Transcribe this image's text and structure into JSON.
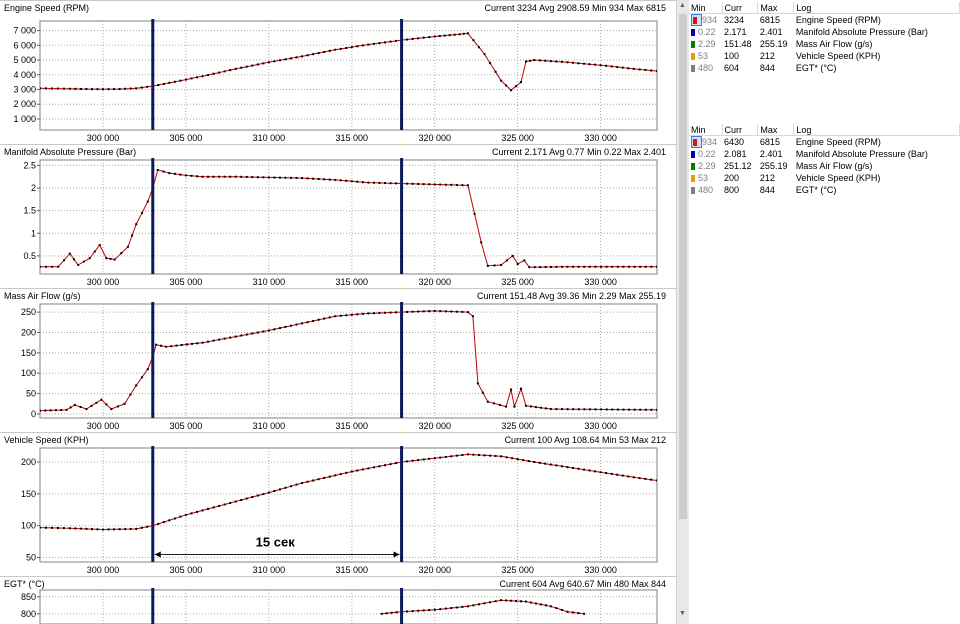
{
  "x_axis": {
    "min": 296200,
    "max": 333400,
    "ticks": [
      300000,
      305000,
      310000,
      315000,
      320000,
      325000,
      330000
    ],
    "tick_labels": [
      "300 000",
      "305 000",
      "310 000",
      "315 000",
      "320 000",
      "325 000",
      "330 000"
    ]
  },
  "markers": [
    303000,
    318000
  ],
  "annotation": {
    "text": "15 сек",
    "from": 303000,
    "to": 318000,
    "y": 50
  },
  "colors": {
    "line": "#c00000",
    "points": "#000000",
    "marker": "#0c1a5c",
    "grid": "#a8a8a8",
    "selected": "#c8ddf5"
  },
  "chart_data": [
    {
      "type": "line",
      "name": "Engine Speed (RPM)",
      "title": "Engine Speed (RPM)",
      "stats": "Current 3234 Avg 2908.59 Min 934 Max 6815",
      "ylim": [
        250,
        7650
      ],
      "yticks": [
        1000,
        2000,
        3000,
        4000,
        5000,
        6000,
        7000
      ],
      "ytick_labels": [
        "1 000",
        "2 000",
        "3 000",
        "4 000",
        "5 000",
        "6 000",
        "7 000"
      ],
      "points": [
        [
          296200,
          3080
        ],
        [
          298000,
          3050
        ],
        [
          299000,
          3030
        ],
        [
          300000,
          3020
        ],
        [
          301000,
          3030
        ],
        [
          302000,
          3080
        ],
        [
          303000,
          3230
        ],
        [
          304000,
          3450
        ],
        [
          306000,
          3900
        ],
        [
          308000,
          4400
        ],
        [
          310000,
          4850
        ],
        [
          312000,
          5250
        ],
        [
          314000,
          5700
        ],
        [
          316000,
          6050
        ],
        [
          318000,
          6350
        ],
        [
          320000,
          6600
        ],
        [
          321500,
          6750
        ],
        [
          322000,
          6815
        ],
        [
          323000,
          5400
        ],
        [
          324000,
          3600
        ],
        [
          324600,
          2950
        ],
        [
          325200,
          3500
        ],
        [
          325500,
          4900
        ],
        [
          326000,
          5000
        ],
        [
          328000,
          4850
        ],
        [
          330000,
          4650
        ],
        [
          332000,
          4400
        ],
        [
          333400,
          4250
        ]
      ]
    },
    {
      "type": "line",
      "name": "Manifold Absolute Pressure (Bar)",
      "title": "Manifold Absolute Pressure (Bar)",
      "stats": "Current 2.171 Avg 0.77 Min 0.22 Max 2.401",
      "ylim": [
        0.1,
        2.62
      ],
      "yticks": [
        0.5,
        1,
        1.5,
        2,
        2.5
      ],
      "ytick_labels": [
        "0.5",
        "1",
        "1.5",
        "2",
        "2.5"
      ],
      "points": [
        [
          296200,
          0.26
        ],
        [
          297300,
          0.26
        ],
        [
          298000,
          0.55
        ],
        [
          298500,
          0.3
        ],
        [
          299200,
          0.45
        ],
        [
          299800,
          0.74
        ],
        [
          300200,
          0.45
        ],
        [
          300700,
          0.42
        ],
        [
          301500,
          0.7
        ],
        [
          302000,
          1.2
        ],
        [
          302700,
          1.7
        ],
        [
          303000,
          2.0
        ],
        [
          303300,
          2.4
        ],
        [
          304000,
          2.33
        ],
        [
          305000,
          2.28
        ],
        [
          306000,
          2.25
        ],
        [
          308000,
          2.25
        ],
        [
          312000,
          2.22
        ],
        [
          314000,
          2.18
        ],
        [
          316000,
          2.12
        ],
        [
          318000,
          2.1
        ],
        [
          320000,
          2.08
        ],
        [
          322000,
          2.06
        ],
        [
          322800,
          0.8
        ],
        [
          323200,
          0.28
        ],
        [
          324000,
          0.3
        ],
        [
          324700,
          0.5
        ],
        [
          325000,
          0.32
        ],
        [
          325400,
          0.4
        ],
        [
          325700,
          0.25
        ],
        [
          328000,
          0.26
        ],
        [
          333400,
          0.26
        ]
      ]
    },
    {
      "type": "line",
      "name": "Mass Air Flow (g/s)",
      "title": "Mass Air Flow (g/s)",
      "stats": "Current 151.48 Avg 39.36 Min 2.29 Max 255.19",
      "ylim": [
        -10,
        270
      ],
      "yticks": [
        0,
        50,
        100,
        150,
        200,
        250
      ],
      "ytick_labels": [
        "0",
        "50",
        "100",
        "150",
        "200",
        "250"
      ],
      "points": [
        [
          296200,
          8
        ],
        [
          297800,
          10
        ],
        [
          298300,
          22
        ],
        [
          299000,
          12
        ],
        [
          299900,
          35
        ],
        [
          300500,
          12
        ],
        [
          301300,
          25
        ],
        [
          302000,
          70
        ],
        [
          302700,
          110
        ],
        [
          303000,
          140
        ],
        [
          303200,
          170
        ],
        [
          303800,
          165
        ],
        [
          306000,
          175
        ],
        [
          310000,
          205
        ],
        [
          314000,
          240
        ],
        [
          316000,
          247
        ],
        [
          318000,
          250
        ],
        [
          320000,
          253
        ],
        [
          322000,
          250
        ],
        [
          322300,
          240
        ],
        [
          322600,
          75
        ],
        [
          323200,
          30
        ],
        [
          324300,
          18
        ],
        [
          324600,
          60
        ],
        [
          324800,
          18
        ],
        [
          325200,
          62
        ],
        [
          325500,
          20
        ],
        [
          327000,
          12
        ],
        [
          333400,
          10
        ]
      ]
    },
    {
      "type": "line",
      "name": "Vehicle Speed (KPH)",
      "title": "Vehicle Speed (KPH)",
      "stats": "Current 100 Avg 108.64 Min 53 Max 212",
      "ylim": [
        43,
        222
      ],
      "yticks": [
        50,
        100,
        150,
        200
      ],
      "ytick_labels": [
        "50",
        "100",
        "150",
        "200"
      ],
      "points": [
        [
          296200,
          97
        ],
        [
          298000,
          96
        ],
        [
          300000,
          94
        ],
        [
          302000,
          95
        ],
        [
          303000,
          100
        ],
        [
          305000,
          117
        ],
        [
          308000,
          138
        ],
        [
          310000,
          152
        ],
        [
          312000,
          167
        ],
        [
          315000,
          185
        ],
        [
          318000,
          200
        ],
        [
          320000,
          206
        ],
        [
          322000,
          212
        ],
        [
          324000,
          209
        ],
        [
          326000,
          200
        ],
        [
          328000,
          192
        ],
        [
          330000,
          184
        ],
        [
          332000,
          176
        ],
        [
          333400,
          171
        ]
      ]
    },
    {
      "type": "line",
      "name": "EGT* (°C)",
      "title": "EGT* (°C)",
      "stats": "Current 604 Avg 640.67 Min 480 Max 844",
      "ylim": [
        770,
        870
      ],
      "yticks": [
        800,
        850
      ],
      "ytick_labels": [
        "800",
        "850"
      ],
      "points": [
        [
          316800,
          800
        ],
        [
          318000,
          806
        ],
        [
          320000,
          812
        ],
        [
          322000,
          822
        ],
        [
          324000,
          840
        ],
        [
          325500,
          836
        ],
        [
          327000,
          822
        ],
        [
          328000,
          806
        ],
        [
          329000,
          800
        ]
      ]
    }
  ],
  "legends": [
    {
      "headers": [
        "Min",
        "Curr",
        "Max",
        "Log"
      ],
      "rows": [
        {
          "min": "934",
          "curr": "3234",
          "max": "6815",
          "log": "Engine Speed (RPM)",
          "color": "#d01818"
        },
        {
          "min": "0.22",
          "curr": "2.171",
          "max": "2.401",
          "log": "Manifold Absolute Pressure (Bar)",
          "color": "#0000c0"
        },
        {
          "min": "2.29",
          "curr": "151.48",
          "max": "255.19",
          "log": "Mass Air Flow (g/s)",
          "color": "#008000"
        },
        {
          "min": "53",
          "curr": "100",
          "max": "212",
          "log": "Vehicle Speed (KPH)",
          "color": "#e0a000"
        },
        {
          "min": "480",
          "curr": "604",
          "max": "844",
          "log": "EGT* (°C)",
          "color": "#808080"
        }
      ]
    },
    {
      "headers": [
        "Min",
        "Curr",
        "Max",
        "Log"
      ],
      "rows": [
        {
          "min": "934",
          "curr": "6430",
          "max": "6815",
          "log": "Engine Speed (RPM)",
          "color": "#d01818"
        },
        {
          "min": "0.22",
          "curr": "2.081",
          "max": "2.401",
          "log": "Manifold Absolute Pressure (Bar)",
          "color": "#0000c0"
        },
        {
          "min": "2.29",
          "curr": "251.12",
          "max": "255.19",
          "log": "Mass Air Flow (g/s)",
          "color": "#008000"
        },
        {
          "min": "53",
          "curr": "200",
          "max": "212",
          "log": "Vehicle Speed (KPH)",
          "color": "#e0a000"
        },
        {
          "min": "480",
          "curr": "800",
          "max": "844",
          "log": "EGT* (°C)",
          "color": "#808080"
        }
      ]
    }
  ],
  "scrollbar": {
    "up": "▲",
    "down": "▼"
  }
}
